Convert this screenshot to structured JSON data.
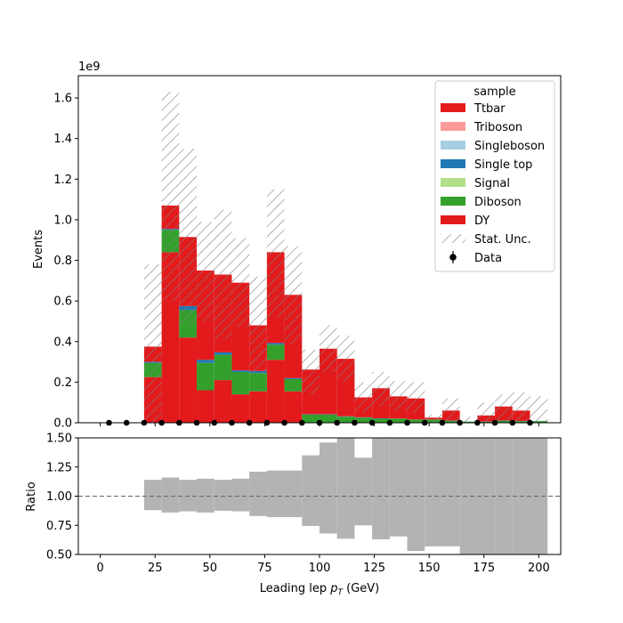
{
  "chart_data": [
    {
      "type": "bar",
      "stacked": true,
      "xlabel": "",
      "ylabel": "Events",
      "y_scale_label": "1e9",
      "xlim": [
        -10,
        210
      ],
      "ylim": [
        0,
        1.71
      ],
      "y_unit_multiplier": 1000000000.0,
      "bin_edges": [
        20,
        28,
        36,
        44,
        52,
        60,
        68,
        76,
        84,
        92,
        100,
        108,
        116,
        124,
        132,
        140,
        148,
        156,
        164,
        172,
        180,
        188,
        196,
        204
      ],
      "x_ticks": [
        0,
        25,
        50,
        75,
        100,
        125,
        150,
        175,
        200
      ],
      "y_ticks": [
        0.0,
        0.2,
        0.4,
        0.6,
        0.8,
        1.0,
        1.2,
        1.4,
        1.6
      ],
      "y_tick_labels": [
        "0.0",
        "0.2",
        "0.4",
        "0.6",
        "0.8",
        "1.0",
        "1.2",
        "1.4",
        "1.6"
      ],
      "series": [
        {
          "name": "DY",
          "color": "#e31a1c",
          "values": [
            0.225,
            0.84,
            0.42,
            0.16,
            0.21,
            0.14,
            0.155,
            0.31,
            0.155,
            0.0,
            0.0,
            0.0,
            0.0,
            0.0,
            0.0,
            0.0,
            0.0,
            0.0,
            0.0,
            0.0,
            0.0,
            0.0,
            0.0
          ]
        },
        {
          "name": "Diboson",
          "color": "#33a02c",
          "values": [
            0.07,
            0.11,
            0.135,
            0.135,
            0.125,
            0.11,
            0.09,
            0.075,
            0.06,
            0.04,
            0.04,
            0.03,
            0.025,
            0.02,
            0.02,
            0.015,
            0.015,
            0.01,
            0.005,
            0.005,
            0.01,
            0.008,
            0.008
          ]
        },
        {
          "name": "Signal",
          "color": "#b2df8a",
          "values": [
            0,
            0,
            0,
            0,
            0,
            0,
            0,
            0,
            0,
            0,
            0,
            0,
            0,
            0,
            0,
            0,
            0,
            0,
            0,
            0,
            0,
            0,
            0
          ]
        },
        {
          "name": "Single top",
          "color": "#1f78b4",
          "values": [
            0.005,
            0.005,
            0.02,
            0.015,
            0.012,
            0.008,
            0.01,
            0.008,
            0.005,
            0.002,
            0.002,
            0.002,
            0.002,
            0.002,
            0.001,
            0.001,
            0.001,
            0.001,
            0.001,
            0.001,
            0.001,
            0.001,
            0.001
          ]
        },
        {
          "name": "Singleboson",
          "color": "#a6cee3",
          "values": [
            0,
            0,
            0,
            0,
            0,
            0,
            0,
            0,
            0,
            0,
            0,
            0,
            0,
            0,
            0,
            0,
            0,
            0,
            0,
            0,
            0,
            0,
            0
          ]
        },
        {
          "name": "Triboson",
          "color": "#fb9a99",
          "values": [
            0,
            0,
            0,
            0,
            0,
            0,
            0,
            0,
            0,
            0,
            0,
            0,
            0,
            0,
            0,
            0,
            0,
            0,
            0,
            0,
            0,
            0,
            0
          ]
        },
        {
          "name": "Ttbar",
          "color": "#e31a1c",
          "values": [
            0.075,
            0.115,
            0.34,
            0.44,
            0.383,
            0.432,
            0.225,
            0.447,
            0.41,
            0.22,
            0.323,
            0.283,
            0.098,
            0.148,
            0.109,
            0.104,
            0.009,
            0.049,
            0.0,
            0.03,
            0.069,
            0.051,
            0.0
          ]
        }
      ],
      "stat_unc": {
        "name": "Stat. Unc.",
        "totals": [
          0.375,
          1.07,
          0.915,
          0.75,
          0.73,
          0.69,
          0.48,
          0.84,
          0.63,
          0.262,
          0.365,
          0.315,
          0.125,
          0.17,
          0.13,
          0.12,
          0.025,
          0.06,
          0.006,
          0.036,
          0.08,
          0.06,
          0.055
        ],
        "low": [
          0.0,
          0.6,
          0.48,
          0.5,
          0.41,
          0.47,
          0.24,
          0.52,
          0.39,
          0.14,
          0.25,
          0.2,
          0.05,
          0.08,
          0.06,
          0.05,
          0.0,
          0.0,
          0.0,
          0.0,
          0.01,
          0.0,
          0.0
        ],
        "high": [
          0.78,
          1.63,
          1.35,
          0.99,
          1.05,
          0.91,
          0.72,
          1.15,
          0.87,
          0.36,
          0.48,
          0.43,
          0.2,
          0.25,
          0.205,
          0.2,
          0.04,
          0.12,
          0.03,
          0.1,
          0.14,
          0.15,
          0.13
        ]
      },
      "data_points": {
        "name": "Data",
        "x": [
          4,
          12,
          20,
          28,
          36,
          44,
          52,
          60,
          68,
          76,
          84,
          92,
          100,
          108,
          116,
          124,
          132,
          140,
          148,
          156,
          164,
          172,
          180,
          188,
          196
        ],
        "y": [
          0,
          0,
          0,
          0,
          0,
          0,
          0,
          0,
          0,
          0,
          0,
          0,
          0,
          0,
          0,
          0,
          0,
          0,
          0,
          0,
          0,
          0,
          0,
          0,
          0
        ]
      },
      "legend": {
        "title": "sample",
        "placement": "top-right",
        "entries": [
          {
            "label": "Ttbar",
            "color": "#e31a1c",
            "kind": "patch"
          },
          {
            "label": "Triboson",
            "color": "#fb9a99",
            "kind": "patch"
          },
          {
            "label": "Singleboson",
            "color": "#a6cee3",
            "kind": "patch"
          },
          {
            "label": "Single top",
            "color": "#1f78b4",
            "kind": "patch"
          },
          {
            "label": "Signal",
            "color": "#b2df8a",
            "kind": "patch"
          },
          {
            "label": "Diboson",
            "color": "#33a02c",
            "kind": "patch"
          },
          {
            "label": "DY",
            "color": "#e31a1c",
            "kind": "patch"
          },
          {
            "label": "Stat. Unc.",
            "color": "#808080",
            "kind": "hatch"
          },
          {
            "label": "Data",
            "color": "#000000",
            "kind": "marker"
          }
        ]
      }
    },
    {
      "type": "area",
      "xlabel": "Leading lep p_T (GeV)",
      "ylabel": "Ratio",
      "xlim": [
        -10,
        210
      ],
      "ylim": [
        0.5,
        1.5
      ],
      "x_ticks": [
        0,
        25,
        50,
        75,
        100,
        125,
        150,
        175,
        200
      ],
      "x_tick_labels": [
        "0",
        "25",
        "50",
        "75",
        "100",
        "125",
        "150",
        "175",
        "200"
      ],
      "y_ticks": [
        0.5,
        0.75,
        1.0,
        1.25,
        1.5
      ],
      "y_tick_labels": [
        "0.50",
        "0.75",
        "1.00",
        "1.25",
        "1.50"
      ],
      "reference_line": 1.0,
      "band_color": "#b3b3b3",
      "bin_edges": [
        20,
        28,
        36,
        44,
        52,
        60,
        68,
        76,
        84,
        92,
        100,
        108,
        116,
        124,
        132,
        140,
        148,
        156,
        164,
        172,
        180,
        188,
        196,
        204
      ],
      "band_low": [
        0.88,
        0.86,
        0.87,
        0.86,
        0.875,
        0.87,
        0.83,
        0.82,
        0.82,
        0.745,
        0.68,
        0.635,
        0.75,
        0.63,
        0.655,
        0.53,
        0.57,
        0.57,
        0.5,
        0.5,
        0.5,
        0.5,
        0.5
      ],
      "band_high": [
        1.14,
        1.16,
        1.14,
        1.15,
        1.14,
        1.15,
        1.21,
        1.22,
        1.22,
        1.35,
        1.46,
        1.5,
        1.33,
        1.5,
        1.5,
        1.5,
        1.5,
        1.5,
        1.5,
        1.5,
        1.5,
        1.5,
        1.5
      ]
    }
  ]
}
